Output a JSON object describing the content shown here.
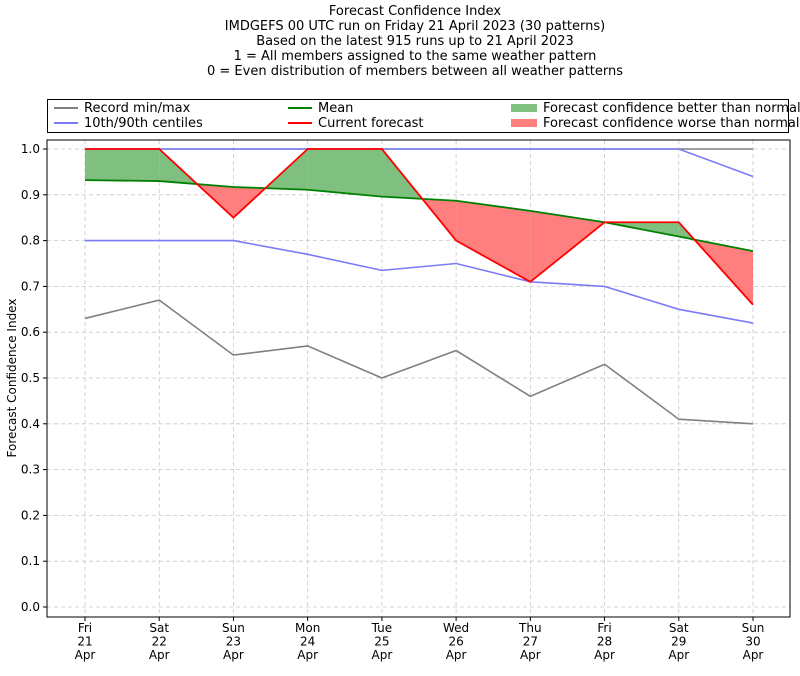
{
  "chart_data": {
    "type": "line",
    "title": "Forecast Confidence Index",
    "subtitle_lines": [
      "IMDGEFS 00 UTC run on Friday 21 April 2023 (30 patterns)",
      "Based on the latest 915 runs up to 21 April 2023",
      "1 = All members assigned to the same weather pattern",
      "0 = Even distribution of members between all weather patterns"
    ],
    "xlabel": "",
    "ylabel": "Forecast Confidence Index",
    "ylim": [
      0,
      1
    ],
    "yticks": [
      "0.0",
      "0.1",
      "0.2",
      "0.3",
      "0.4",
      "0.5",
      "0.6",
      "0.7",
      "0.8",
      "0.9",
      "1.0"
    ],
    "categories": [
      [
        "Fri",
        "21",
        "Apr"
      ],
      [
        "Sat",
        "22",
        "Apr"
      ],
      [
        "Sun",
        "23",
        "Apr"
      ],
      [
        "Mon",
        "24",
        "Apr"
      ],
      [
        "Tue",
        "25",
        "Apr"
      ],
      [
        "Wed",
        "26",
        "Apr"
      ],
      [
        "Thu",
        "27",
        "Apr"
      ],
      [
        "Fri",
        "28",
        "Apr"
      ],
      [
        "Sat",
        "29",
        "Apr"
      ],
      [
        "Sun",
        "30",
        "Apr"
      ]
    ],
    "grid": true,
    "legend_placement": "top",
    "series": [
      {
        "name": "Record min/max",
        "color": "#808080",
        "role": "record_max",
        "values": [
          1.0,
          1.0,
          1.0,
          1.0,
          1.0,
          1.0,
          1.0,
          1.0,
          1.0,
          1.0
        ]
      },
      {
        "name": "Record min/max",
        "color": "#808080",
        "role": "record_min",
        "values": [
          0.63,
          0.67,
          0.55,
          0.57,
          0.5,
          0.56,
          0.46,
          0.53,
          0.41,
          0.4
        ]
      },
      {
        "name": "10th/90th centiles",
        "color": "#7b7bf7",
        "role": "p90",
        "values": [
          1.0,
          1.0,
          1.0,
          1.0,
          1.0,
          1.0,
          1.0,
          1.0,
          1.0,
          0.94
        ]
      },
      {
        "name": "10th/90th centiles",
        "color": "#7b7bf7",
        "role": "p10",
        "values": [
          0.8,
          0.8,
          0.8,
          0.77,
          0.735,
          0.75,
          0.71,
          0.7,
          0.65,
          0.62
        ]
      },
      {
        "name": "Mean",
        "color": "#008000",
        "role": "mean",
        "values": [
          0.932,
          0.93,
          0.917,
          0.911,
          0.896,
          0.887,
          0.865,
          0.84,
          0.809,
          0.777
        ]
      },
      {
        "name": "Current forecast",
        "color": "#ff0000",
        "role": "current",
        "values": [
          1.0,
          1.0,
          0.85,
          1.0,
          1.0,
          0.8,
          0.71,
          0.84,
          0.84,
          0.66
        ]
      }
    ],
    "fills": {
      "better": {
        "label": "Forecast confidence better than normal",
        "color": "#7fbf7f"
      },
      "worse": {
        "label": "Forecast confidence worse than normal",
        "color": "#ff7f7f"
      }
    }
  },
  "legend": {
    "items": [
      {
        "label": "Record min/max",
        "color": "#808080",
        "kind": "line"
      },
      {
        "label": "10th/90th centiles",
        "color": "#7b7bf7",
        "kind": "line"
      },
      {
        "label": "Mean",
        "color": "#008000",
        "kind": "line"
      },
      {
        "label": "Current forecast",
        "color": "#ff0000",
        "kind": "line"
      },
      {
        "label": "Forecast confidence better than normal",
        "color": "#7fbf7f",
        "kind": "patch"
      },
      {
        "label": "Forecast confidence worse than normal",
        "color": "#ff7f7f",
        "kind": "patch"
      }
    ]
  }
}
